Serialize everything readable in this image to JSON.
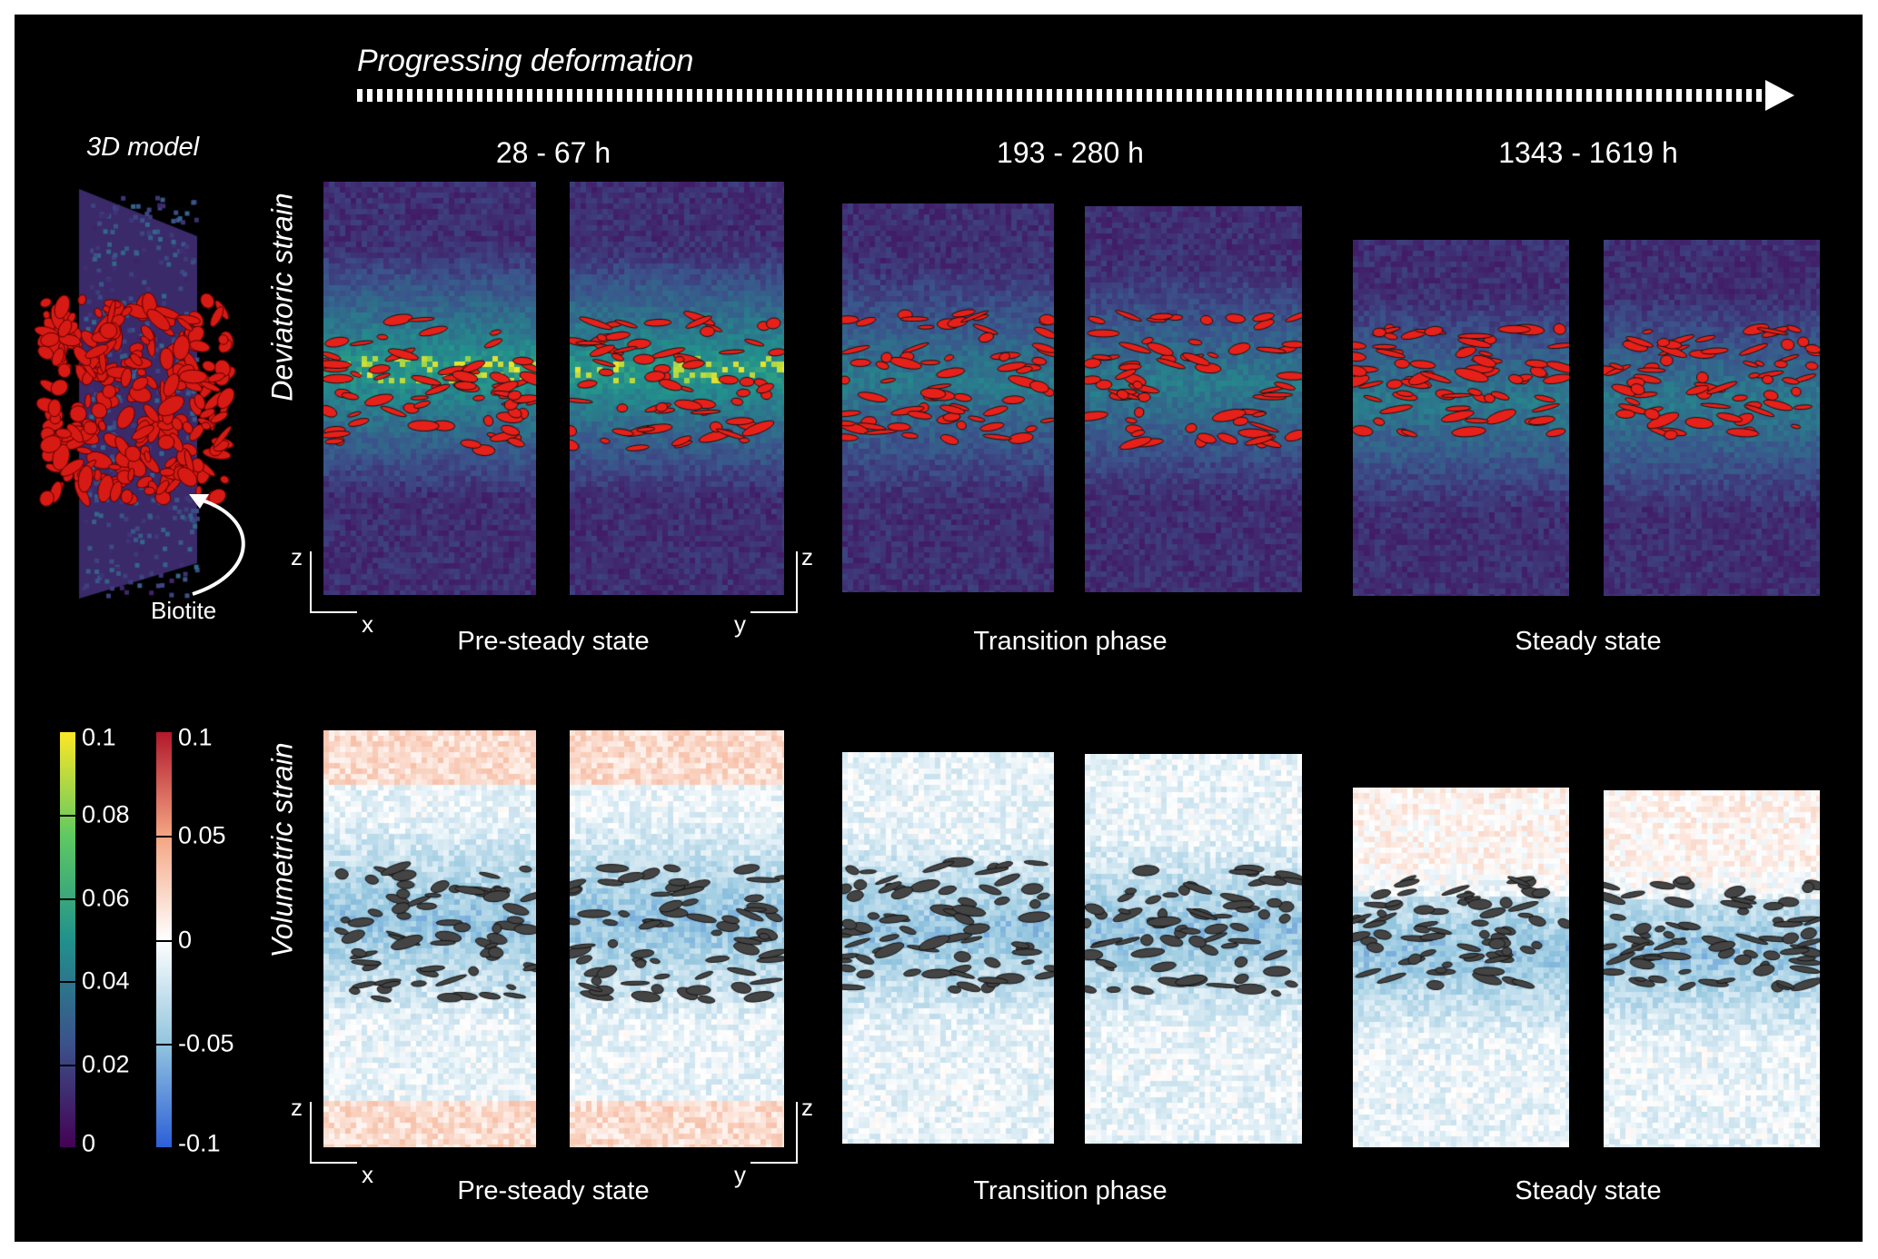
{
  "header": {
    "title": "Progressing deformation"
  },
  "model": {
    "label": "3D model",
    "callout": "Biotite"
  },
  "time_windows": [
    "28 - 67 h",
    "193 - 280 h",
    "1343 - 1619 h"
  ],
  "phases": [
    "Pre-steady state",
    "Transition phase",
    "Steady state"
  ],
  "rows": {
    "top": "Deviatoric strain",
    "bottom": "Volumetric strain"
  },
  "axes": {
    "z": "z",
    "x": "x",
    "y": "y"
  },
  "colorbars": {
    "deviatoric": {
      "ticks": [
        "0.1",
        "0.08",
        "0.06",
        "0.04",
        "0.02",
        "0"
      ],
      "range": [
        0,
        0.1
      ],
      "colors": [
        "#fde725",
        "#5ec962",
        "#21918c",
        "#3b528b",
        "#440154"
      ]
    },
    "volumetric": {
      "ticks": [
        "0.1",
        "0.05",
        "0",
        "-0.05",
        "-0.1"
      ],
      "range": [
        -0.1,
        0.1
      ],
      "colors": [
        "#b2182b",
        "#f4a582",
        "#ffffff",
        "#92c5de",
        "#2c5fd8"
      ]
    }
  },
  "colors": {
    "biotite_top": "#e8201a",
    "biotite_bottom": "#444444",
    "background": "#000000"
  }
}
